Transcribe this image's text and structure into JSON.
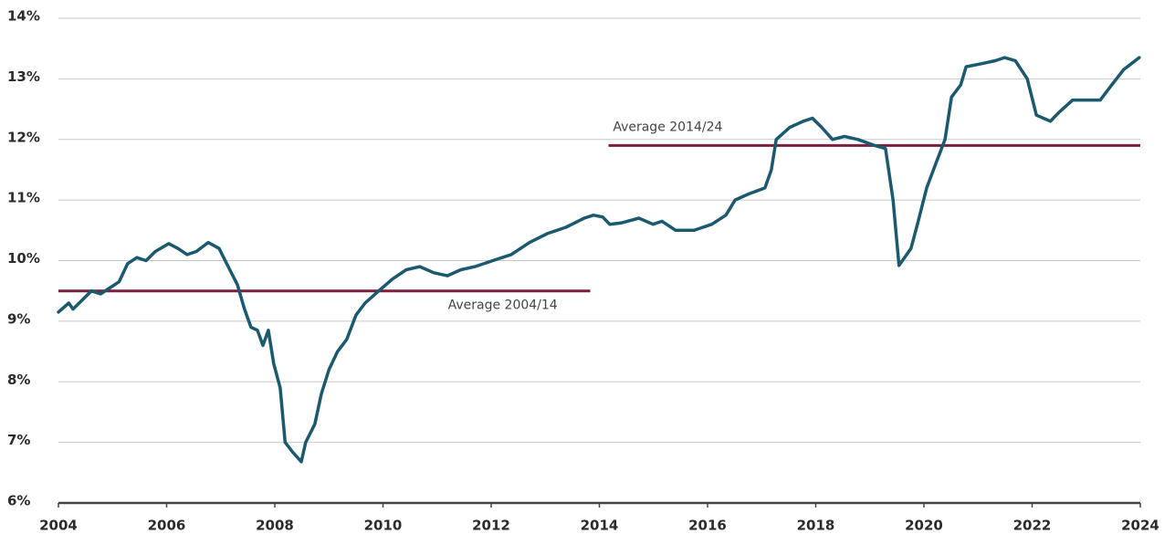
{
  "chart_data": {
    "type": "line",
    "xlim": [
      2004,
      2024
    ],
    "xticks": [
      2004,
      2006,
      2008,
      2010,
      2012,
      2014,
      2016,
      2018,
      2020,
      2022,
      2024
    ],
    "ylim": [
      6,
      14
    ],
    "yticks": [
      {
        "value": 6,
        "label": "6%"
      },
      {
        "value": 7,
        "label": "7%"
      },
      {
        "value": 8,
        "label": "8%"
      },
      {
        "value": 9,
        "label": "9%"
      },
      {
        "value": 10,
        "label": "10%"
      },
      {
        "value": 11,
        "label": "11%"
      },
      {
        "value": 12,
        "label": "12%"
      },
      {
        "value": 13,
        "label": "13%"
      },
      {
        "value": 14,
        "label": "14%"
      }
    ],
    "grid": true,
    "series": [
      {
        "color": "#1b5a6e",
        "x": [
          2004.0,
          2004.19,
          2004.27,
          2004.44,
          2004.61,
          2004.78,
          2004.95,
          2005.12,
          2005.28,
          2005.45,
          2005.62,
          2005.79,
          2006.04,
          2006.21,
          2006.38,
          2006.55,
          2006.77,
          2006.97,
          2007.14,
          2007.31,
          2007.44,
          2007.56,
          2007.68,
          2007.78,
          2007.88,
          2007.98,
          2008.1,
          2008.19,
          2008.32,
          2008.49,
          2008.57,
          2008.74,
          2008.86,
          2009.0,
          2009.16,
          2009.33,
          2009.5,
          2009.67,
          2009.92,
          2010.18,
          2010.43,
          2010.68,
          2010.94,
          2011.19,
          2011.44,
          2011.7,
          2012.03,
          2012.37,
          2012.71,
          2013.05,
          2013.38,
          2013.72,
          2013.89,
          2014.06,
          2014.19,
          2014.4,
          2014.73,
          2014.99,
          2015.16,
          2015.41,
          2015.75,
          2016.08,
          2016.34,
          2016.51,
          2016.76,
          2017.06,
          2017.18,
          2017.27,
          2017.52,
          2017.77,
          2017.94,
          2018.11,
          2018.31,
          2018.53,
          2018.78,
          2019.09,
          2019.29,
          2019.43,
          2019.54,
          2019.76,
          2019.88,
          2020.05,
          2020.22,
          2020.39,
          2020.51,
          2020.68,
          2020.78,
          2021.06,
          2021.32,
          2021.49,
          2021.69,
          2021.91,
          2022.08,
          2022.34,
          2022.5,
          2022.75,
          2023.0,
          2023.26,
          2023.43,
          2023.69,
          2023.98
        ],
        "values": [
          9.15,
          9.3,
          9.2,
          9.35,
          9.5,
          9.45,
          9.55,
          9.65,
          9.95,
          10.05,
          10.0,
          10.15,
          10.28,
          10.2,
          10.1,
          10.15,
          10.3,
          10.2,
          9.9,
          9.6,
          9.2,
          8.9,
          8.85,
          8.6,
          8.85,
          8.3,
          7.9,
          7.0,
          6.85,
          6.68,
          7.0,
          7.3,
          7.8,
          8.2,
          8.5,
          8.7,
          9.1,
          9.3,
          9.5,
          9.7,
          9.85,
          9.9,
          9.8,
          9.75,
          9.85,
          9.9,
          10.0,
          10.1,
          10.3,
          10.45,
          10.55,
          10.7,
          10.75,
          10.72,
          10.6,
          10.62,
          10.7,
          10.6,
          10.65,
          10.5,
          10.5,
          10.6,
          10.75,
          11.0,
          11.1,
          11.2,
          11.5,
          12.0,
          12.2,
          12.3,
          12.35,
          12.2,
          12.0,
          12.05,
          12.0,
          11.9,
          11.85,
          11.0,
          9.92,
          10.2,
          10.6,
          11.2,
          11.6,
          12.0,
          12.7,
          12.9,
          13.2,
          13.25,
          13.3,
          13.35,
          13.3,
          13.0,
          12.4,
          12.3,
          12.45,
          12.65,
          12.65,
          12.65,
          12.85,
          13.15,
          13.35
        ]
      }
    ],
    "averages": [
      {
        "label": "Average 2004/14",
        "value": 9.5,
        "x": [
          2004,
          2014
        ],
        "color": "#7a1f3d"
      },
      {
        "label": "Average 2014/24",
        "value": 11.9,
        "x": [
          2014,
          2024
        ],
        "color": "#7a1f3d"
      }
    ]
  }
}
